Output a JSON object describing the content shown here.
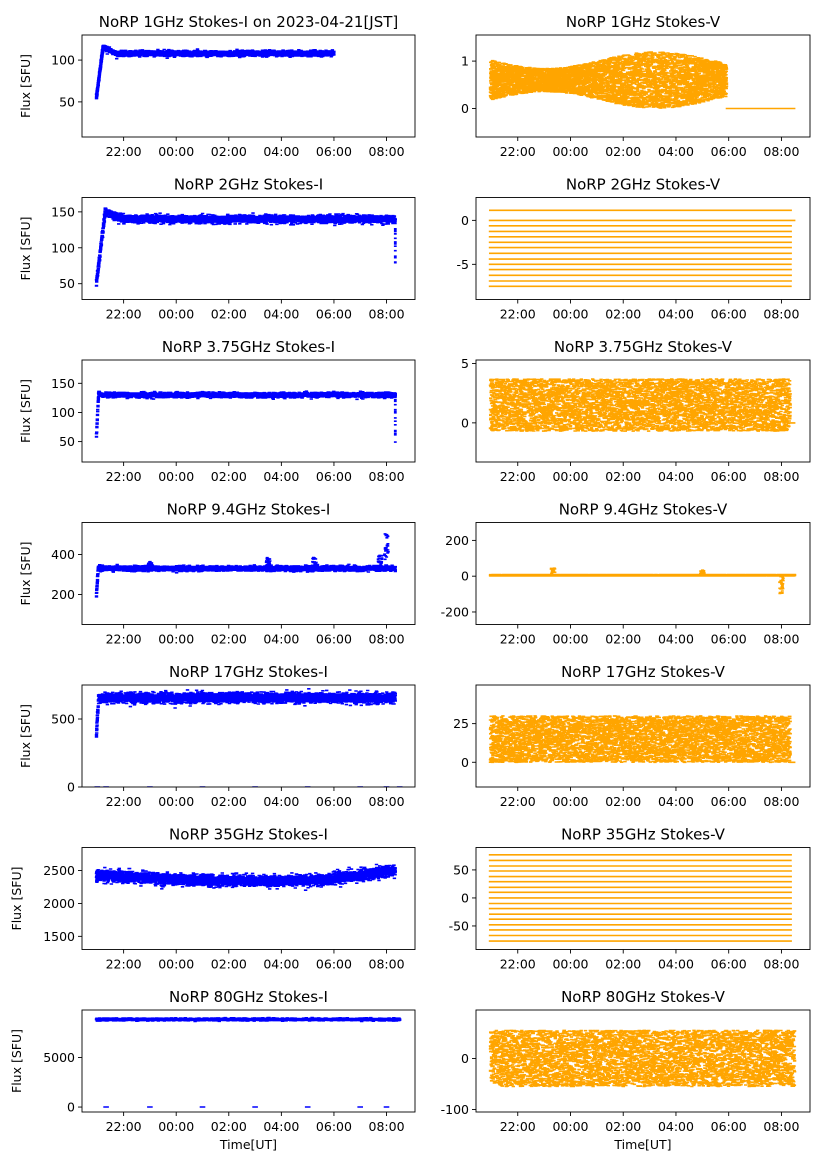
{
  "figure": {
    "xlabel": "Time[UT]",
    "x_ticks": [
      "22:00",
      "00:00",
      "02:00",
      "04:00",
      "06:00",
      "08:00"
    ],
    "colors": {
      "stokes_i": "#0000ff",
      "stokes_v": "#ffa500"
    }
  },
  "chart_data": [
    {
      "id": "1ghz-i",
      "type": "scatter",
      "title": "NoRP 1GHz Stokes-I on 2023-04-21[JST]",
      "ylabel": "Flux [SFU]",
      "ylim": [
        8,
        130
      ],
      "y_ticks": [
        50,
        100
      ],
      "x_start": "20:58",
      "x_end": "06:00",
      "level": 108,
      "noise": 1.5,
      "initial_value": 55,
      "rise_minutes": 15,
      "overshoot": 8
    },
    {
      "id": "1ghz-v",
      "type": "scatter",
      "title": "NoRP 1GHz Stokes-V",
      "ylabel": "",
      "ylim": [
        -0.6,
        1.55
      ],
      "y_ticks": [
        0,
        1
      ],
      "x_start": "20:58",
      "x_end": "05:55",
      "level": 0.6,
      "spread": 0.35,
      "tail": {
        "x_start": "05:55",
        "x_end": "08:30",
        "value": 0
      }
    },
    {
      "id": "2ghz-i",
      "type": "scatter",
      "title": "NoRP 2GHz Stokes-I",
      "ylabel": "Flux [SFU]",
      "ylim": [
        28,
        170
      ],
      "y_ticks": [
        50,
        100,
        150
      ],
      "x_start": "20:58",
      "x_end": "08:20",
      "level": 140,
      "noise": 2.5,
      "initial_value": 52,
      "rise_minutes": 20,
      "overshoot": 10,
      "end_drop": 40
    },
    {
      "id": "2ghz-v",
      "type": "scatter",
      "title": "NoRP 2GHz Stokes-V",
      "ylabel": "",
      "ylim": [
        -9,
        2.6
      ],
      "y_ticks": [
        -5,
        0
      ],
      "x_start": "20:58",
      "x_end": "08:20",
      "quantized_levels": [
        1.15,
        0,
        -0.62,
        -1.25,
        -1.87,
        -2.5,
        -3.1,
        -3.75,
        -4.4,
        -5,
        -5.6,
        -6.25,
        -6.9,
        -7.5
      ],
      "tail": {
        "x_start": "08:20",
        "x_end": "08:30",
        "value": 0
      }
    },
    {
      "id": "375ghz-i",
      "type": "scatter",
      "title": "NoRP 3.75GHz Stokes-I",
      "ylabel": "Flux [SFU]",
      "ylim": [
        15,
        190
      ],
      "y_ticks": [
        50,
        100,
        150
      ],
      "x_start": "20:58",
      "x_end": "08:20",
      "level": 130,
      "noise": 2,
      "initial_value": 60,
      "rise_minutes": 5,
      "overshoot": 3,
      "end_drop": 50
    },
    {
      "id": "375ghz-v",
      "type": "scatter",
      "title": "NoRP 3.75GHz Stokes-V",
      "ylabel": "",
      "ylim": [
        -3.3,
        5.3
      ],
      "y_ticks": [
        0,
        5
      ],
      "x_start": "20:58",
      "x_end": "08:20",
      "level": 1.5,
      "spread": 2.2,
      "tail": {
        "x_start": "08:20",
        "x_end": "08:30",
        "value": 0
      }
    },
    {
      "id": "94ghz-i",
      "type": "scatter",
      "title": "NoRP 9.4GHz Stokes-I",
      "ylabel": "Flux [SFU]",
      "ylim": [
        50,
        560
      ],
      "y_ticks": [
        200,
        400
      ],
      "x_start": "20:58",
      "x_end": "08:20",
      "level": 330,
      "noise": 6,
      "initial_value": 200,
      "rise_minutes": 4,
      "overshoot": 0,
      "spikes": [
        [
          "23:00",
          365
        ],
        [
          "03:30",
          385
        ],
        [
          "05:15",
          390
        ],
        [
          "07:45",
          400
        ],
        [
          "08:00",
          530
        ]
      ]
    },
    {
      "id": "94ghz-v",
      "type": "scatter",
      "title": "NoRP 9.4GHz Stokes-V",
      "ylabel": "",
      "ylim": [
        -270,
        300
      ],
      "y_ticks": [
        -200,
        0,
        200
      ],
      "x_start": "20:58",
      "x_end": "08:30",
      "level": 5,
      "spread": 4,
      "spikes": [
        [
          "23:20",
          45
        ],
        [
          "05:00",
          35
        ],
        [
          "08:00",
          -100
        ]
      ]
    },
    {
      "id": "17ghz-i",
      "type": "scatter",
      "title": "NoRP 17GHz Stokes-I",
      "ylabel": "Flux [SFU]",
      "ylim": [
        0,
        750
      ],
      "y_ticks": [
        0,
        500
      ],
      "x_start": "20:58",
      "x_end": "08:20",
      "level": 655,
      "noise": 18,
      "initial_value": 400,
      "rise_minutes": 5,
      "overshoot": 0,
      "zero_points": [
        "21:00",
        "21:20",
        "23:00",
        "01:00",
        "03:00",
        "05:00",
        "07:00",
        "08:00",
        "08:30"
      ]
    },
    {
      "id": "17ghz-v",
      "type": "scatter",
      "title": "NoRP 17GHz Stokes-V",
      "ylabel": "",
      "ylim": [
        -16,
        50
      ],
      "y_ticks": [
        0,
        25
      ],
      "x_start": "20:58",
      "x_end": "08:20",
      "level": 15,
      "spread": 15,
      "tail": {
        "x_start": "08:20",
        "x_end": "08:30",
        "value": 0
      }
    },
    {
      "id": "35ghz-i",
      "type": "scatter",
      "title": "NoRP 35GHz Stokes-I",
      "ylabel": "Flux [SFU]",
      "ylim": [
        1300,
        2850
      ],
      "y_ticks": [
        1500,
        2000,
        2500
      ],
      "x_start": "20:58",
      "x_end": "08:20",
      "level": 2430,
      "noise": 40,
      "initial_value": 2000,
      "rise_minutes": 5,
      "overshoot": 0
    },
    {
      "id": "35ghz-v",
      "type": "scatter",
      "title": "NoRP 35GHz Stokes-V",
      "ylabel": "",
      "ylim": [
        -92,
        90
      ],
      "y_ticks": [
        -50,
        0,
        50
      ],
      "x_start": "20:58",
      "x_end": "08:20",
      "quantized_levels": [
        77,
        67,
        57,
        48,
        38,
        29,
        19,
        10,
        0,
        -10,
        -19,
        -29,
        -38,
        -48,
        -57,
        -67,
        -77
      ]
    },
    {
      "id": "80ghz-i",
      "type": "scatter",
      "title": "NoRP 80GHz Stokes-I",
      "ylabel": "Flux [SFU]",
      "ylim": [
        -500,
        9800
      ],
      "y_ticks": [
        0,
        5000
      ],
      "x_start": "20:58",
      "x_end": "08:30",
      "level": 8850,
      "noise": 60,
      "zero_points": [
        "21:20",
        "23:00",
        "01:00",
        "03:00",
        "05:00",
        "07:00",
        "08:00"
      ]
    },
    {
      "id": "80ghz-v",
      "type": "scatter",
      "title": "NoRP 80GHz Stokes-V",
      "ylabel": "",
      "ylim": [
        -105,
        95
      ],
      "y_ticks": [
        -100,
        0
      ],
      "x_start": "20:58",
      "x_end": "08:30",
      "level": 0,
      "spread": 55
    }
  ]
}
